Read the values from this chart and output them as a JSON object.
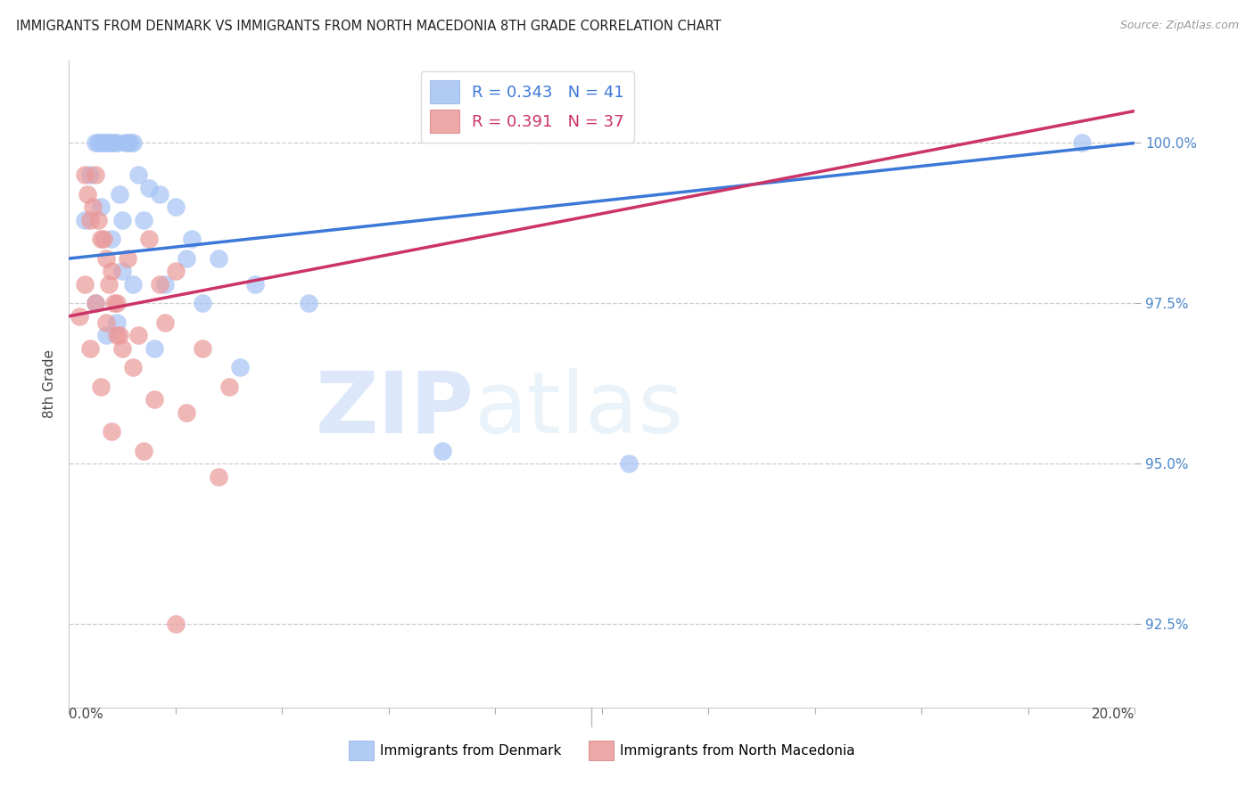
{
  "title": "IMMIGRANTS FROM DENMARK VS IMMIGRANTS FROM NORTH MACEDONIA 8TH GRADE CORRELATION CHART",
  "source": "Source: ZipAtlas.com",
  "ylabel": "8th Grade",
  "ytick_labels": [
    "92.5%",
    "95.0%",
    "97.5%",
    "100.0%"
  ],
  "ytick_values": [
    92.5,
    95.0,
    97.5,
    100.0
  ],
  "xlim": [
    0.0,
    20.0
  ],
  "ylim": [
    91.2,
    101.3
  ],
  "legend_blue_r": "0.343",
  "legend_blue_n": "41",
  "legend_pink_r": "0.391",
  "legend_pink_n": "37",
  "blue_color": "#a4c2f4",
  "pink_color": "#ea9999",
  "blue_line_color": "#3c78d8",
  "pink_line_color": "#cc3366",
  "background_color": "#ffffff",
  "denmark_x": [
    0.3,
    0.5,
    0.55,
    0.6,
    0.65,
    0.7,
    0.75,
    0.8,
    0.85,
    0.9,
    0.95,
    1.0,
    1.05,
    1.1,
    1.15,
    1.2,
    1.3,
    1.5,
    1.7,
    2.0,
    2.3,
    2.8,
    3.5,
    4.5,
    0.4,
    0.6,
    0.8,
    1.0,
    1.4,
    1.8,
    2.2,
    0.5,
    0.7,
    0.9,
    1.2,
    1.6,
    2.5,
    3.2,
    7.0,
    19.0,
    10.5
  ],
  "denmark_y": [
    98.8,
    100.0,
    100.0,
    100.0,
    100.0,
    100.0,
    100.0,
    100.0,
    100.0,
    100.0,
    99.2,
    98.8,
    100.0,
    100.0,
    100.0,
    100.0,
    99.5,
    99.3,
    99.2,
    99.0,
    98.5,
    98.2,
    97.8,
    97.5,
    99.5,
    99.0,
    98.5,
    98.0,
    98.8,
    97.8,
    98.2,
    97.5,
    97.0,
    97.2,
    97.8,
    96.8,
    97.5,
    96.5,
    95.2,
    100.0,
    95.0
  ],
  "macedonia_x": [
    0.2,
    0.3,
    0.35,
    0.4,
    0.45,
    0.5,
    0.55,
    0.6,
    0.65,
    0.7,
    0.75,
    0.8,
    0.85,
    0.9,
    0.95,
    1.0,
    1.1,
    1.3,
    1.5,
    1.8,
    2.0,
    2.5,
    3.0,
    0.3,
    0.5,
    0.7,
    0.9,
    1.2,
    1.6,
    2.2,
    0.4,
    0.6,
    0.8,
    1.4,
    2.8,
    1.7,
    2.0
  ],
  "macedonia_y": [
    97.3,
    99.5,
    99.2,
    98.8,
    99.0,
    99.5,
    98.8,
    98.5,
    98.5,
    98.2,
    97.8,
    98.0,
    97.5,
    97.5,
    97.0,
    96.8,
    98.2,
    97.0,
    98.5,
    97.2,
    98.0,
    96.8,
    96.2,
    97.8,
    97.5,
    97.2,
    97.0,
    96.5,
    96.0,
    95.8,
    96.8,
    96.2,
    95.5,
    95.2,
    94.8,
    97.8,
    92.5
  ],
  "blue_trendline_x": [
    0.0,
    20.0
  ],
  "blue_trendline_y": [
    98.2,
    100.0
  ],
  "pink_trendline_x": [
    0.0,
    20.0
  ],
  "pink_trendline_y": [
    97.3,
    100.5
  ]
}
